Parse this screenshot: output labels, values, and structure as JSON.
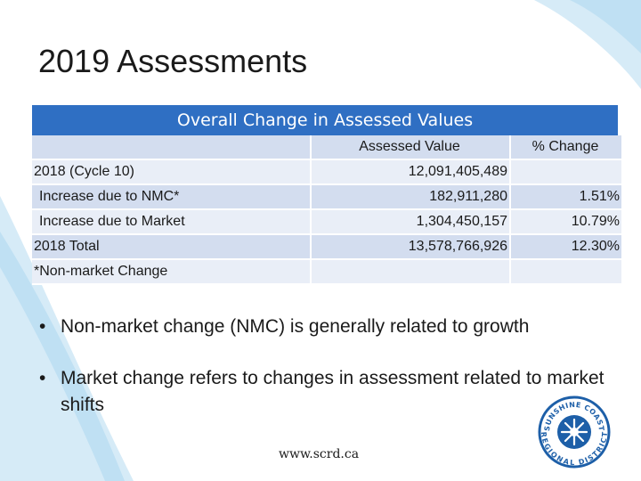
{
  "slide": {
    "title": "2019 Assessments",
    "url": "www.scrd.ca"
  },
  "table": {
    "header": "Overall Change in Assessed Values",
    "columns": [
      "",
      "Assessed Value",
      "% Change"
    ],
    "rows": [
      {
        "label": "2018 (Cycle 10)",
        "value": "12,091,405,489",
        "change": ""
      },
      {
        "label": "Increase due to NMC*",
        "value": "182,911,280",
        "change": "1.51%"
      },
      {
        "label": "Increase due to Market",
        "value": "1,304,450,157",
        "change": "10.79%"
      },
      {
        "label": "2018 Total",
        "value": "13,578,766,926",
        "change": "12.30%"
      },
      {
        "label": "*Non-market Change",
        "value": "",
        "change": ""
      }
    ]
  },
  "bullets": [
    "Non-market change (NMC) is generally related to growth",
    "Market change refers to changes in assessment related to market shifts"
  ],
  "logo": {
    "text": "SUNSHINE COAST REGIONAL DISTRICT",
    "color": "#1d5fa8"
  },
  "colors": {
    "header_bg": "#2f6fc3",
    "row_band": "#d3ddef",
    "row_plain": "#e9eef7",
    "swoosh": "#cfe6f5"
  }
}
